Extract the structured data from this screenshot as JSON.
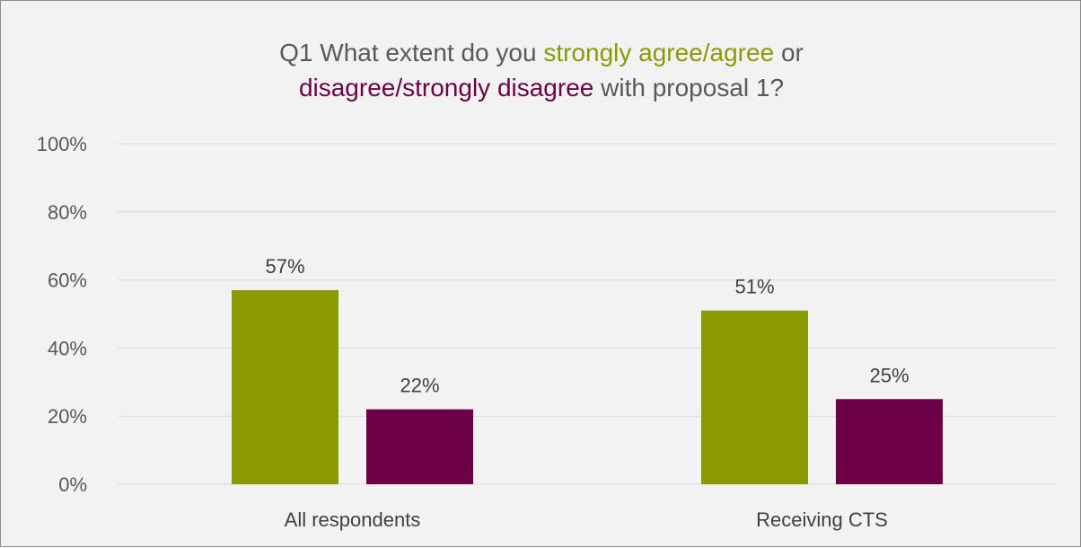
{
  "chart_data": {
    "type": "bar",
    "title": {
      "line1_prefix": "Q1 What extent do you",
      "agree_phrase": "strongly agree/agree",
      "line1_suffix": "or",
      "disagree_phrase": "disagree/strongly disagree",
      "line2_suffix": "with proposal 1?"
    },
    "categories": [
      "All respondents",
      "Receiving CTS"
    ],
    "series": [
      {
        "color": "#8a9a00",
        "values": [
          57,
          51
        ],
        "labels": [
          "57%",
          "51%"
        ]
      },
      {
        "color": "#6e0048",
        "values": [
          22,
          25
        ],
        "labels": [
          "22%",
          "25%"
        ]
      }
    ],
    "ylim": [
      0,
      100
    ],
    "yticks": [
      0,
      20,
      40,
      60,
      80,
      100
    ],
    "ytick_labels": [
      "0%",
      "20%",
      "40%",
      "60%",
      "80%",
      "100%"
    ],
    "grid": true,
    "legend": "none"
  }
}
